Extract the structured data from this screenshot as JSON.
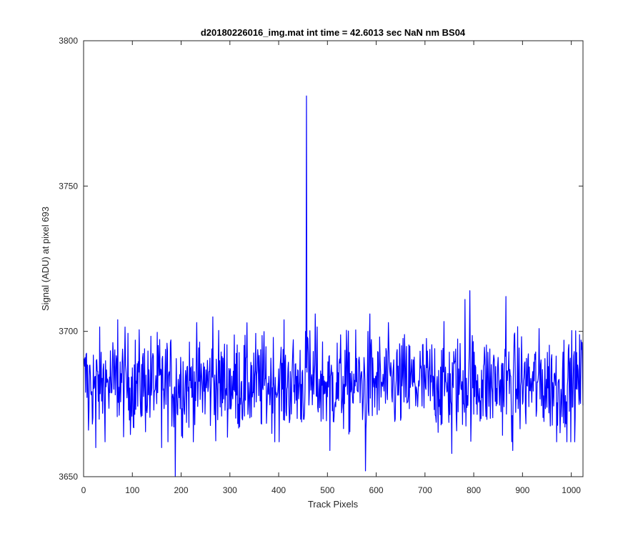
{
  "chart_data": {
    "type": "line",
    "title": "d20180226016_img.mat int time = 42.6013 sec  NaN nm BS04",
    "xlabel": "Track Pixels",
    "ylabel": "Signal (ADU) at pixel 693",
    "xlim": [
      0,
      1024
    ],
    "ylim": [
      3650,
      3800
    ],
    "xticks": [
      0,
      100,
      200,
      300,
      400,
      500,
      600,
      700,
      800,
      900,
      1000
    ],
    "yticks": [
      3650,
      3700,
      3750,
      3800
    ],
    "grid": false,
    "box": true,
    "line_color": "#0000ff",
    "noise_model": {
      "x_start": 1,
      "x_end": 1024,
      "baseline": 3682,
      "typical_min": 3662,
      "typical_max": 3704
    },
    "notable_points": [
      {
        "x": 5,
        "y": 3692
      },
      {
        "x": 10,
        "y": 3666
      },
      {
        "x": 25,
        "y": 3660
      },
      {
        "x": 70,
        "y": 3704
      },
      {
        "x": 160,
        "y": 3660
      },
      {
        "x": 188,
        "y": 3650
      },
      {
        "x": 265,
        "y": 3705
      },
      {
        "x": 455,
        "y": 3700
      },
      {
        "x": 457,
        "y": 3781
      },
      {
        "x": 459,
        "y": 3698
      },
      {
        "x": 475,
        "y": 3706
      },
      {
        "x": 505,
        "y": 3659
      },
      {
        "x": 578,
        "y": 3652
      },
      {
        "x": 587,
        "y": 3706
      },
      {
        "x": 755,
        "y": 3658
      },
      {
        "x": 782,
        "y": 3711
      },
      {
        "x": 792,
        "y": 3714
      },
      {
        "x": 866,
        "y": 3712
      },
      {
        "x": 880,
        "y": 3659
      },
      {
        "x": 970,
        "y": 3662
      },
      {
        "x": 1020,
        "y": 3697
      }
    ]
  }
}
